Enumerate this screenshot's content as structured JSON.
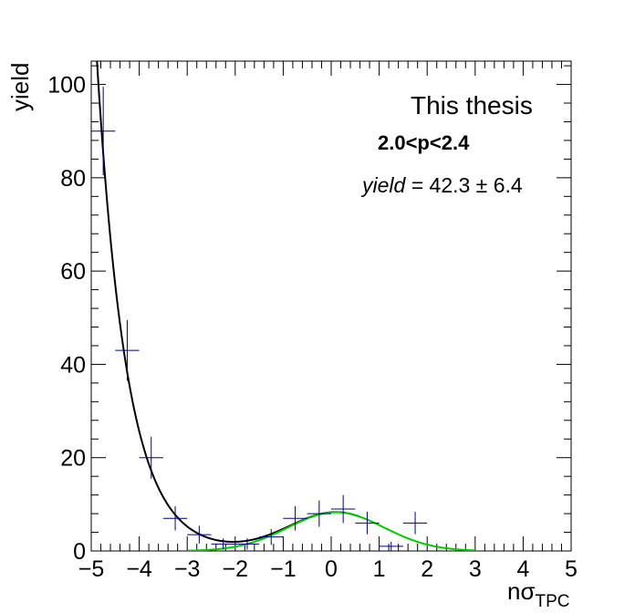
{
  "chart_data": {
    "type": "scatter",
    "title": "",
    "xlabel": {
      "main": "nσ",
      "sub": "TPC"
    },
    "ylabel": "yield",
    "xlim": [
      -5,
      5
    ],
    "ylim": [
      0,
      105
    ],
    "xticks": [
      -5,
      -4,
      -3,
      -2,
      -1,
      0,
      1,
      2,
      3,
      4,
      5
    ],
    "yticks": [
      0,
      20,
      40,
      60,
      80,
      100
    ],
    "xtick_labels": [
      "−5",
      "−4",
      "−3",
      "−2",
      "−1",
      "0",
      "1",
      "2",
      "3",
      "4",
      "5"
    ],
    "ytick_labels": [
      "0",
      "20",
      "40",
      "60",
      "80",
      "100"
    ],
    "grid": false,
    "annotations": {
      "label": "This thesis",
      "range": "2.0<p<2.4",
      "yield_symbol": "yield",
      "yield_value": " = 42.3 ± 6.4"
    },
    "series": [
      {
        "type": "errorbar",
        "color": "#000080",
        "x": [
          -4.75,
          -4.25,
          -3.75,
          -3.25,
          -2.75,
          -2.25,
          -1.75,
          -1.25,
          -0.75,
          -0.25,
          0.25,
          0.75,
          1.25,
          1.75
        ],
        "xerr": 0.25,
        "y": [
          90,
          43,
          20,
          7,
          3.5,
          1.5,
          1.5,
          3,
          7,
          8,
          9,
          6,
          1,
          6
        ],
        "yerr": [
          9.5,
          6.5,
          4.5,
          2.6,
          1.9,
          1.2,
          1.2,
          1.7,
          2.6,
          2.8,
          3.0,
          2.4,
          1.0,
          2.4
        ]
      },
      {
        "type": "curve",
        "color": "#000000",
        "model": "exp_plus_gauss",
        "xrange": [
          -5,
          0.6
        ],
        "exp_norm": 100,
        "exp_x0": -4.85,
        "exp_slope": 1.6,
        "gauss_amp": 8.3,
        "gauss_mean": 0.1,
        "gauss_sigma": 1.0
      },
      {
        "type": "curve",
        "color": "#00cc00",
        "model": "gauss",
        "xrange": [
          -3,
          3
        ],
        "gauss_amp": 8.3,
        "gauss_mean": 0.1,
        "gauss_sigma": 1.0
      }
    ]
  }
}
